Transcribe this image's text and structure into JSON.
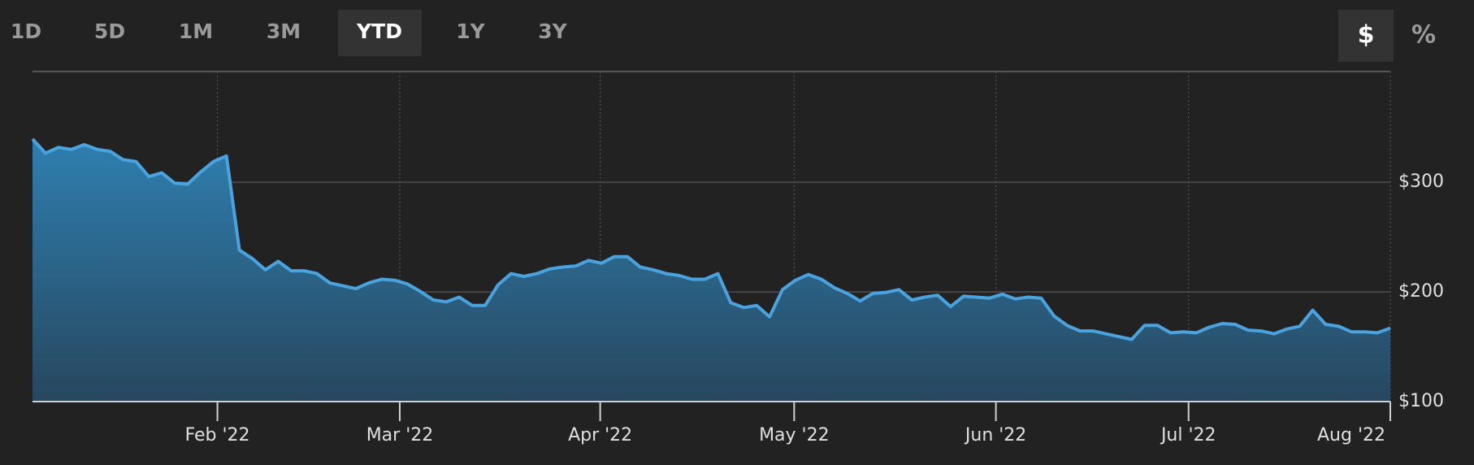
{
  "range_buttons": [
    "1D",
    "5D",
    "1M",
    "3M",
    "YTD",
    "1Y",
    "3Y"
  ],
  "unit_buttons": [
    "$",
    "%"
  ],
  "chart_data": {
    "type": "area",
    "color": "#4aa3df",
    "grid": true,
    "values": [
      339.5,
      326.6,
      331.8,
      330.0,
      334.3,
      330.0,
      328.3,
      320.6,
      318.9,
      305.2,
      308.6,
      299.1,
      298.3,
      309.4,
      318.9,
      324.0,
      238.2,
      230.5,
      220.2,
      227.9,
      219.3,
      219.3,
      216.7,
      208.2,
      205.6,
      203.0,
      208.2,
      211.6,
      210.7,
      207.3,
      200.4,
      192.7,
      191.0,
      195.3,
      187.6,
      187.6,
      206.4,
      216.7,
      214.2,
      216.7,
      221.0,
      222.7,
      223.6,
      228.8,
      226.2,
      232.2,
      232.2,
      222.7,
      220.2,
      216.7,
      215.0,
      211.6,
      211.6,
      216.7,
      190.1,
      185.8,
      187.6,
      177.3,
      202.1,
      210.7,
      215.9,
      211.6,
      203.9,
      198.7,
      191.8,
      198.7,
      199.6,
      202.1,
      192.7,
      195.3,
      197.0,
      186.7,
      196.1,
      195.3,
      194.4,
      197.9,
      193.6,
      195.3,
      194.4,
      178.1,
      169.5,
      164.4,
      164.4,
      161.8,
      159.2,
      156.7,
      169.5,
      169.5,
      162.7,
      163.5,
      162.7,
      167.8,
      171.2,
      170.4,
      165.2,
      164.4,
      161.8,
      166.1,
      168.7,
      183.3,
      170.4,
      168.7,
      163.5,
      163.5,
      162.7,
      167.0
    ],
    "xlim": [
      0,
      105
    ],
    "xticks": [
      {
        "value": 14.3,
        "label": "Feb '22"
      },
      {
        "value": 28.4,
        "label": "Mar '22"
      },
      {
        "value": 43.9,
        "label": "Apr '22"
      },
      {
        "value": 58.9,
        "label": "May '22"
      },
      {
        "value": 74.5,
        "label": "Jun '22"
      },
      {
        "value": 89.4,
        "label": "Jul '22"
      },
      {
        "value": 105,
        "label": "Aug '22"
      }
    ],
    "ylim": [
      100,
      401
    ],
    "yticks": [
      {
        "value": 100,
        "label": "$100"
      },
      {
        "value": 200,
        "label": "$200"
      },
      {
        "value": 300,
        "label": "$300"
      }
    ]
  }
}
